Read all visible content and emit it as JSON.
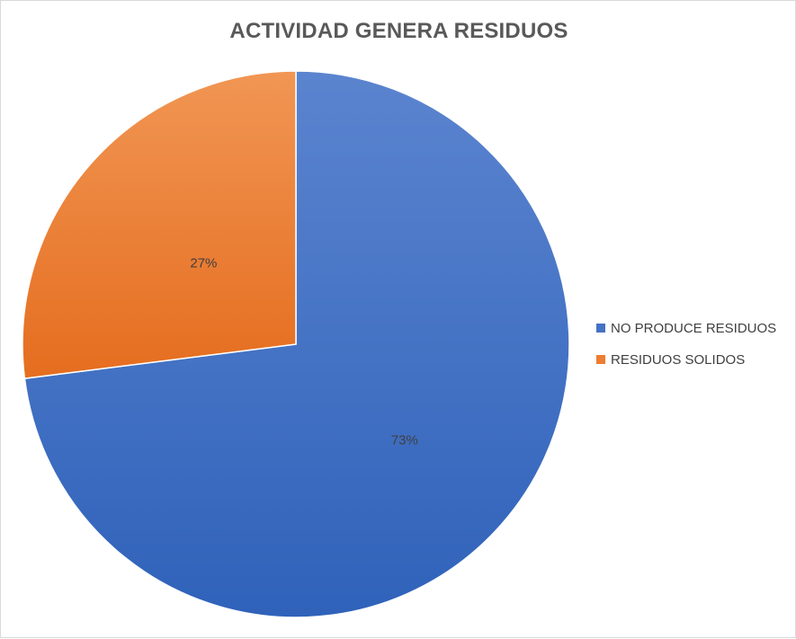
{
  "chart_data": {
    "type": "pie",
    "title": "ACTIVIDAD GENERA RESIDUOS",
    "categories": [
      "NO PRODUCE RESIDUOS",
      "RESIDUOS SOLIDOS"
    ],
    "values": [
      73,
      27
    ],
    "data_labels": [
      "73%",
      "27%"
    ],
    "colors": [
      "#4472c4",
      "#ed7d31"
    ],
    "legend_position": "right"
  }
}
